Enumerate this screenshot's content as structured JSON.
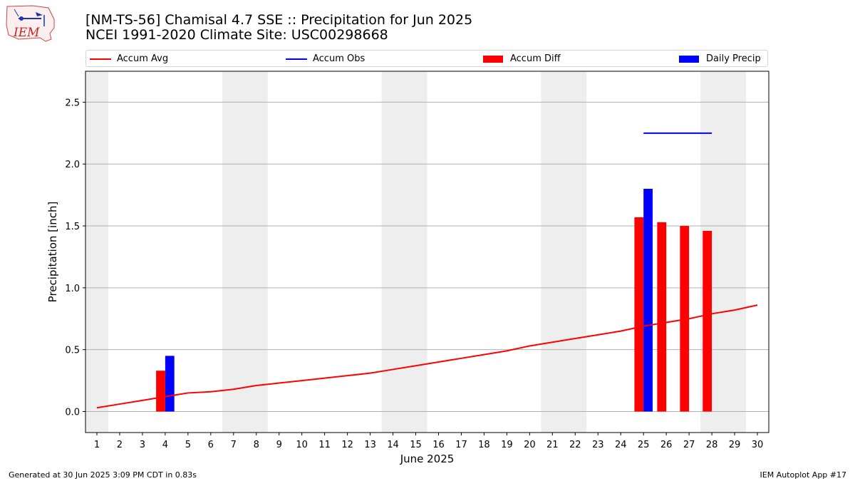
{
  "header": {
    "title_line1": "[NM-TS-56] Chamisal 4.7 SSE :: Precipitation for Jun 2025",
    "title_line2": "NCEI 1991-2020 Climate Site: USC00298668",
    "logo_text": "IEM"
  },
  "legend": {
    "items": [
      {
        "label": "Accum Avg",
        "color": "#ff0000",
        "kind": "line"
      },
      {
        "label": "Accum Obs",
        "color": "#0000ff",
        "kind": "line"
      },
      {
        "label": "Accum Diff",
        "color": "#ff0000",
        "kind": "box"
      },
      {
        "label": "Daily Precip",
        "color": "#0000ff",
        "kind": "box"
      }
    ]
  },
  "footer": {
    "left": "Generated at 30 Jun 2025 3:09 PM CDT in 0.83s",
    "right": "IEM Autoplot App #17"
  },
  "chart_data": {
    "type": "bar",
    "xlabel": "June 2025",
    "ylabel": "Precipitation [inch]",
    "xlim": [
      0.5,
      30.5
    ],
    "ylim": [
      -0.17,
      2.75
    ],
    "yticks": [
      0.0,
      0.5,
      1.0,
      1.5,
      2.0,
      2.5
    ],
    "ytick_labels": [
      "0.0",
      "0.5",
      "1.0",
      "1.5",
      "2.0",
      "2.5"
    ],
    "x": [
      1,
      2,
      3,
      4,
      5,
      6,
      7,
      8,
      9,
      10,
      11,
      12,
      13,
      14,
      15,
      16,
      17,
      18,
      19,
      20,
      21,
      22,
      23,
      24,
      25,
      26,
      27,
      28,
      29,
      30
    ],
    "grid": "horizontal",
    "weekend_shading": [
      [
        0.5,
        1.5
      ],
      [
        6.5,
        8.5
      ],
      [
        13.5,
        15.5
      ],
      [
        20.5,
        22.5
      ],
      [
        27.5,
        29.5
      ]
    ],
    "series": [
      {
        "name": "Accum Avg",
        "kind": "line",
        "color": "#ff0000",
        "values": [
          0.03,
          0.06,
          0.09,
          0.12,
          0.15,
          0.16,
          0.18,
          0.21,
          0.23,
          0.25,
          0.27,
          0.29,
          0.31,
          0.34,
          0.37,
          0.4,
          0.43,
          0.46,
          0.49,
          0.53,
          0.56,
          0.59,
          0.62,
          0.65,
          0.69,
          0.72,
          0.75,
          0.79,
          0.82,
          0.86
        ]
      },
      {
        "name": "Accum Obs",
        "kind": "line",
        "color": "#0000ff",
        "x": [
          25,
          26,
          27,
          28
        ],
        "values": [
          2.25,
          2.25,
          2.25,
          2.25
        ]
      },
      {
        "name": "Accum Diff",
        "kind": "bar",
        "color": "#ff0000",
        "x": [
          4,
          25,
          26,
          27,
          28
        ],
        "values": [
          0.33,
          1.57,
          1.53,
          1.5,
          1.46
        ]
      },
      {
        "name": "Daily Precip",
        "kind": "bar",
        "color": "#0000ff",
        "x": [
          4,
          25
        ],
        "values": [
          0.45,
          1.8
        ]
      }
    ]
  }
}
